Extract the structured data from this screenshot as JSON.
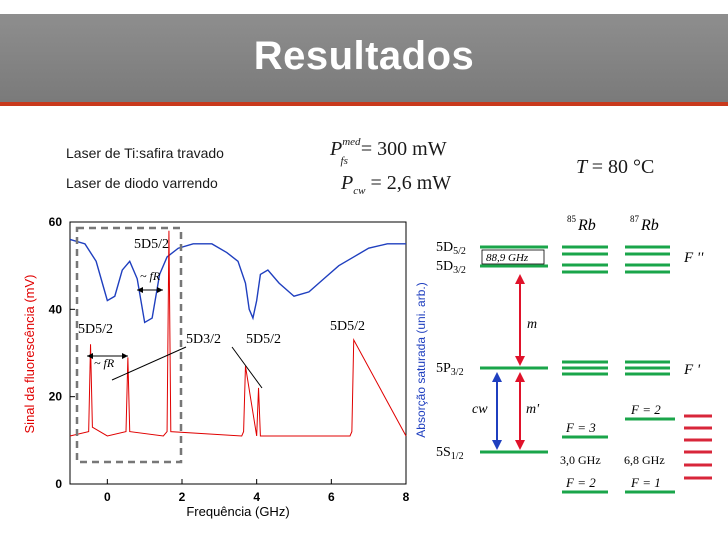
{
  "slide": {
    "title": "Resultados",
    "laser1": "Laser de Ti:safira travado",
    "laser2": "Laser de diodo varrendo",
    "eq1": {
      "lhs": "P",
      "sup": "med",
      "sub": "fs",
      "rhs": "= 300 mW"
    },
    "eq2": {
      "lhs": "P",
      "sub": "cw",
      "rhs": "= 2,6 mW"
    },
    "temp": {
      "lhs": "T",
      "rhs": "= 80 °C"
    }
  },
  "chart_data": {
    "type": "line",
    "xlabel": "Frequência (GHz)",
    "ylabel": "Sinal da fluorescência (mV)",
    "ylabel_right": "Absorção saturada (uni. arb.)",
    "xlim": [
      -1,
      8
    ],
    "ylim": [
      0,
      60
    ],
    "xticks": [
      "0",
      "2",
      "4",
      "6",
      "8"
    ],
    "yticks": [
      "0",
      "20",
      "40",
      "60"
    ],
    "series": [
      {
        "color": "#1f3fbf",
        "x": [
          -1.0,
          -0.6,
          -0.3,
          -0.1,
          0.0,
          0.2,
          0.4,
          0.6,
          0.8,
          1.0,
          1.2,
          1.4,
          1.6,
          1.9,
          2.3,
          2.8,
          3.2,
          3.5,
          3.7,
          3.8,
          3.9,
          4.0,
          4.1,
          4.3,
          4.6,
          5.0,
          5.4,
          5.8,
          6.2,
          6.6,
          7.0,
          7.5,
          8.0
        ],
        "y": [
          56,
          55,
          51,
          45,
          42,
          43,
          49,
          51,
          47,
          37,
          38,
          48,
          52,
          54,
          55,
          55,
          53,
          51,
          46,
          40,
          38,
          42,
          48,
          49,
          46,
          43,
          44,
          47,
          50,
          52,
          54,
          55,
          55
        ]
      },
      {
        "color": "#e00000",
        "x": [
          -1.0,
          -0.5,
          -0.45,
          -0.4,
          0.0,
          0.5,
          0.55,
          0.6,
          1.5,
          1.6,
          1.65,
          1.7,
          3.6,
          3.65,
          3.7,
          4.0,
          4.05,
          4.1,
          6.5,
          6.55,
          6.6,
          8.0
        ],
        "y": [
          11,
          12,
          32,
          13,
          11,
          12,
          29,
          12,
          11,
          12,
          58,
          12,
          11,
          12,
          27,
          11,
          22,
          11,
          11,
          12,
          33,
          11
        ]
      }
    ],
    "annotations": [
      "5D5/2",
      "~ fR",
      "5D5/2",
      "~ fR",
      "5D3/2",
      "5D5/2",
      "5D5/2"
    ]
  },
  "levels": {
    "iso85": "85",
    "iso87": "87",
    "rb": "Rb",
    "s5d52": "5D",
    "s5d52sub": "5/2",
    "s5d32": "5D",
    "s5d32sub": "3/2",
    "gap5d": "88,9 GHz",
    "s5p32": "5P",
    "s5p32sub": "3/2",
    "s5s12": "5S",
    "s5s12sub": "1/2",
    "m": "m",
    "mprime": "m'",
    "cw": "cw",
    "fpp": "F ''",
    "fp": "F '",
    "f3": "F = 3",
    "f2a": "F = 2",
    "f2b": "F = 2",
    "f1": "F = 1",
    "g30": "3,0 GHz",
    "g68": "6,8 GHz",
    "colors": {
      "level": "#1aa54a",
      "up_arrow": "#e0122a",
      "down_arrow": "#1f3fbf",
      "right_bars": "#d8263a"
    }
  }
}
